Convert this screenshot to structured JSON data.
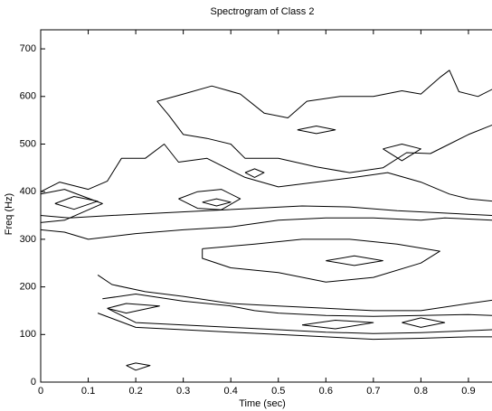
{
  "chart_data": {
    "type": "contour",
    "title": "Spectrogram of Class 2",
    "xlabel": "Time (sec)",
    "ylabel": "Freq (Hz)",
    "xlim": [
      0,
      1
    ],
    "ylim": [
      0,
      740
    ],
    "xticks": [
      0,
      0.1,
      0.2,
      0.3,
      0.4,
      0.5,
      0.6,
      0.7,
      0.8,
      0.9
    ],
    "yticks": [
      0,
      100,
      200,
      300,
      400,
      500,
      600,
      700
    ],
    "grid": false,
    "color": "#000000",
    "contours": [
      {
        "x": [
          0.245,
          0.3,
          0.36,
          0.42,
          0.47,
          0.52,
          0.56,
          0.63,
          0.7,
          0.76,
          0.8,
          0.84,
          0.86,
          0.88,
          0.92,
          0.95
        ],
        "y": [
          590,
          605,
          622,
          605,
          565,
          555,
          590,
          600,
          600,
          612,
          605,
          640,
          655,
          610,
          600,
          615
        ]
      },
      {
        "x": [
          0.95,
          0.9,
          0.86,
          0.82,
          0.77,
          0.72,
          0.65,
          0.58,
          0.5,
          0.43,
          0.4,
          0.35,
          0.3,
          0.27,
          0.245
        ],
        "y": [
          540,
          520,
          500,
          480,
          482,
          450,
          440,
          452,
          470,
          470,
          500,
          512,
          520,
          560,
          590
        ]
      },
      {
        "x": [
          0,
          0.04,
          0.1,
          0.14,
          0.17,
          0.22,
          0.26,
          0.29,
          0.35,
          0.43,
          0.5,
          0.58,
          0.66,
          0.73,
          0.8,
          0.86,
          0.9,
          0.95
        ],
        "y": [
          400,
          420,
          405,
          422,
          470,
          470,
          500,
          462,
          470,
          430,
          410,
          420,
          430,
          440,
          420,
          395,
          385,
          380
        ]
      },
      {
        "x": [
          0,
          0.05,
          0.13,
          0.05,
          0
        ],
        "y": [
          395,
          405,
          375,
          340,
          335
        ]
      },
      {
        "x": [
          0.03,
          0.07,
          0.12,
          0.07,
          0.03
        ],
        "y": [
          375,
          390,
          380,
          363,
          375
        ]
      },
      {
        "x": [
          0.29,
          0.33,
          0.38,
          0.42,
          0.38,
          0.33,
          0.29
        ],
        "y": [
          385,
          400,
          405,
          385,
          362,
          365,
          385
        ]
      },
      {
        "x": [
          0.34,
          0.37,
          0.4,
          0.37,
          0.34
        ],
        "y": [
          378,
          385,
          378,
          370,
          378
        ]
      },
      {
        "x": [
          0,
          0.05,
          0.1,
          0.2,
          0.3,
          0.4,
          0.5,
          0.6,
          0.7,
          0.8,
          0.85,
          0.95
        ],
        "y": [
          320,
          315,
          300,
          312,
          320,
          326,
          340,
          345,
          345,
          340,
          345,
          340
        ]
      },
      {
        "x": [
          0,
          0.06,
          0.15,
          0.25,
          0.35,
          0.45,
          0.55,
          0.65,
          0.75,
          0.85,
          0.95
        ],
        "y": [
          350,
          345,
          350,
          355,
          360,
          365,
          370,
          368,
          360,
          355,
          350
        ]
      },
      {
        "x": [
          0.34,
          0.45,
          0.55,
          0.65,
          0.75,
          0.84,
          0.8,
          0.7,
          0.6,
          0.5,
          0.4,
          0.34,
          0.34
        ],
        "y": [
          280,
          290,
          300,
          300,
          290,
          275,
          250,
          220,
          210,
          230,
          240,
          260,
          280
        ]
      },
      {
        "x": [
          0.6,
          0.66,
          0.72,
          0.66,
          0.6
        ],
        "y": [
          255,
          265,
          255,
          245,
          255
        ]
      },
      {
        "x": [
          0.12,
          0.15,
          0.22,
          0.3,
          0.4,
          0.5,
          0.6,
          0.7,
          0.8,
          0.9,
          0.95
        ],
        "y": [
          225,
          205,
          190,
          180,
          165,
          160,
          155,
          150,
          150,
          165,
          172
        ]
      },
      {
        "x": [
          0.13,
          0.2,
          0.3,
          0.4,
          0.45,
          0.5,
          0.6,
          0.7,
          0.8,
          0.9,
          0.95
        ],
        "y": [
          175,
          185,
          170,
          160,
          150,
          145,
          140,
          138,
          140,
          142,
          140
        ]
      },
      {
        "x": [
          0.12,
          0.2,
          0.3,
          0.4,
          0.5,
          0.6,
          0.7,
          0.8,
          0.9,
          0.95
        ],
        "y": [
          145,
          115,
          110,
          105,
          100,
          95,
          90,
          92,
          95,
          95
        ]
      },
      {
        "x": [
          0.14,
          0.2,
          0.3,
          0.4,
          0.5,
          0.6,
          0.7,
          0.8,
          0.9,
          0.95
        ],
        "y": [
          155,
          125,
          120,
          115,
          110,
          105,
          102,
          104,
          108,
          110
        ]
      },
      {
        "x": [
          0.14,
          0.18,
          0.25,
          0.18,
          0.14
        ],
        "y": [
          155,
          165,
          160,
          145,
          155
        ]
      },
      {
        "x": [
          0.55,
          0.62,
          0.7,
          0.62,
          0.55
        ],
        "y": [
          120,
          130,
          125,
          112,
          120
        ]
      },
      {
        "x": [
          0.76,
          0.8,
          0.85,
          0.8,
          0.76
        ],
        "y": [
          125,
          135,
          125,
          115,
          125
        ]
      },
      {
        "x": [
          0.18,
          0.2,
          0.23,
          0.2,
          0.18
        ],
        "y": [
          35,
          40,
          35,
          25,
          35
        ]
      },
      {
        "x": [
          0.43,
          0.45,
          0.47,
          0.45,
          0.43
        ],
        "y": [
          440,
          448,
          440,
          430,
          440
        ]
      },
      {
        "x": [
          0.54,
          0.58,
          0.62,
          0.58,
          0.54
        ],
        "y": [
          530,
          538,
          530,
          522,
          530
        ]
      },
      {
        "x": [
          0.72,
          0.76,
          0.8,
          0.76,
          0.72
        ],
        "y": [
          490,
          500,
          490,
          465,
          490
        ]
      }
    ]
  }
}
